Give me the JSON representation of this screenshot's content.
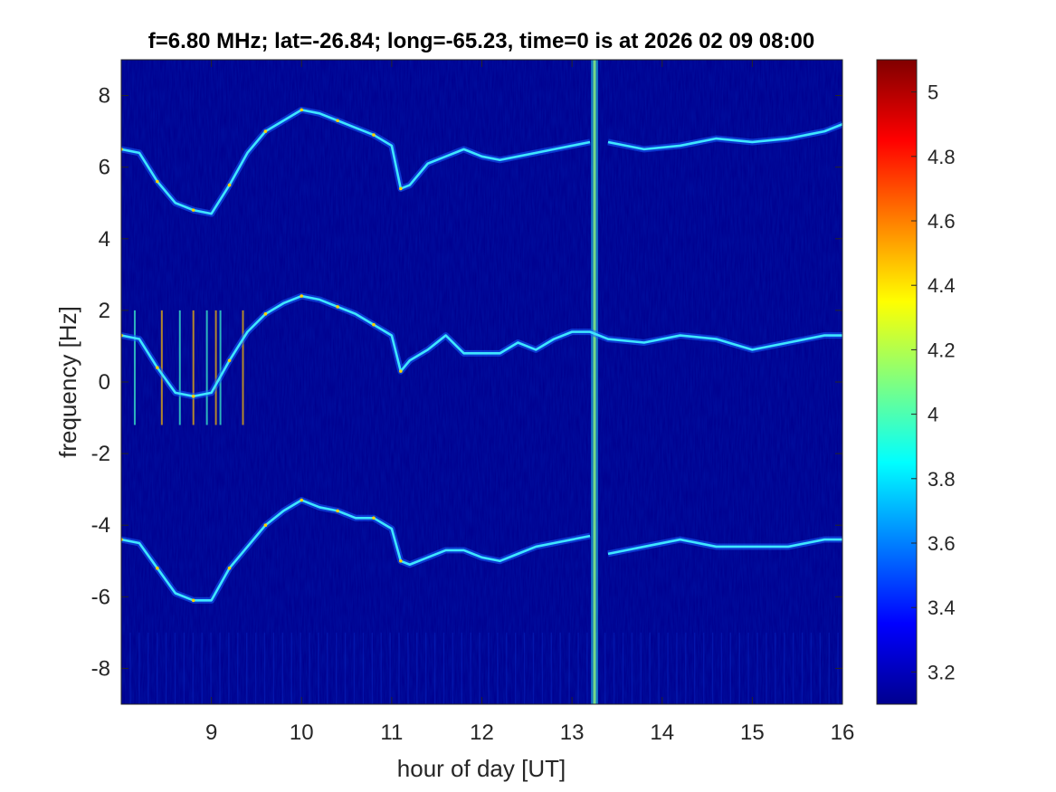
{
  "figure": {
    "title": "f=6.80 MHz;  lat=-26.84; long=-65.23, time=0 is at 2026 02 09 08:00"
  },
  "chart_data": {
    "type": "heatmap",
    "title": "f=6.80 MHz;  lat=-26.84; long=-65.23, time=0 is at 2026 02 09 08:00",
    "xlabel": "hour of day [UT]",
    "ylabel": "frequency [Hz]",
    "xlim": [
      8.0,
      16.0
    ],
    "ylim": [
      -9.0,
      9.0
    ],
    "x_ticks": [
      9,
      10,
      11,
      12,
      13,
      14,
      15,
      16
    ],
    "y_ticks": [
      -8,
      -6,
      -4,
      -2,
      0,
      2,
      4,
      6,
      8
    ],
    "colorbar": {
      "colormap": "jet",
      "clim": [
        3.1,
        5.1
      ],
      "ticks": [
        3.2,
        3.4,
        3.6,
        3.8,
        4,
        4.2,
        4.4,
        4.6,
        4.8,
        5
      ]
    },
    "background_color": "#00008f",
    "series": [
      {
        "x": [
          8.0,
          8.2,
          8.4,
          8.6,
          8.8,
          9.0,
          9.2,
          9.4,
          9.6,
          9.8,
          10.0,
          10.2,
          10.4,
          10.6,
          10.8,
          11.0,
          11.1,
          11.2,
          11.4,
          11.6,
          11.8,
          12.0,
          12.2,
          12.4,
          12.6,
          12.8,
          13.0,
          13.2
        ],
        "y": [
          6.5,
          6.4,
          5.6,
          5.0,
          4.8,
          4.7,
          5.5,
          6.4,
          7.0,
          7.3,
          7.6,
          7.5,
          7.3,
          7.1,
          6.9,
          6.6,
          5.4,
          5.5,
          6.1,
          6.3,
          6.5,
          6.3,
          6.2,
          6.3,
          6.4,
          6.5,
          6.6,
          6.7
        ]
      },
      {
        "x": [
          13.4,
          13.8,
          14.2,
          14.6,
          15.0,
          15.4,
          15.8,
          16.0
        ],
        "y": [
          6.7,
          6.5,
          6.6,
          6.8,
          6.7,
          6.8,
          7.0,
          7.2
        ]
      },
      {
        "x": [
          8.0,
          8.2,
          8.4,
          8.6,
          8.8,
          9.0,
          9.2,
          9.4,
          9.6,
          9.8,
          10.0,
          10.2,
          10.4,
          10.6,
          10.8,
          11.0,
          11.1,
          11.2,
          11.4,
          11.6,
          11.8,
          12.0,
          12.2,
          12.4,
          12.6,
          12.8,
          13.0,
          13.2,
          13.4,
          13.8,
          14.2,
          14.6,
          15.0,
          15.4,
          15.8,
          16.0
        ],
        "y": [
          1.3,
          1.2,
          0.4,
          -0.3,
          -0.4,
          -0.3,
          0.6,
          1.4,
          1.9,
          2.2,
          2.4,
          2.3,
          2.1,
          1.9,
          1.6,
          1.3,
          0.3,
          0.6,
          0.9,
          1.3,
          0.8,
          0.8,
          0.8,
          1.1,
          0.9,
          1.2,
          1.4,
          1.4,
          1.2,
          1.1,
          1.3,
          1.2,
          0.9,
          1.1,
          1.3,
          1.3
        ]
      },
      {
        "x": [
          8.0,
          8.2,
          8.4,
          8.6,
          8.8,
          9.0,
          9.2,
          9.4,
          9.6,
          9.8,
          10.0,
          10.2,
          10.4,
          10.6,
          10.8,
          11.0,
          11.1,
          11.2,
          11.4,
          11.6,
          11.8,
          12.0,
          12.2,
          12.4,
          12.6,
          12.8,
          13.0,
          13.2
        ],
        "y": [
          -4.4,
          -4.5,
          -5.2,
          -5.9,
          -6.1,
          -6.1,
          -5.2,
          -4.6,
          -4.0,
          -3.6,
          -3.3,
          -3.5,
          -3.6,
          -3.8,
          -3.8,
          -4.1,
          -5.0,
          -5.1,
          -4.9,
          -4.7,
          -4.7,
          -4.9,
          -5.0,
          -4.8,
          -4.6,
          -4.5,
          -4.4,
          -4.3
        ]
      },
      {
        "x": [
          13.4,
          13.8,
          14.2,
          14.6,
          15.0,
          15.4,
          15.8,
          16.0
        ],
        "y": [
          -4.8,
          -4.6,
          -4.4,
          -4.6,
          -4.6,
          -4.6,
          -4.4,
          -4.4
        ]
      }
    ],
    "vertical_band_x": 13.25
  }
}
